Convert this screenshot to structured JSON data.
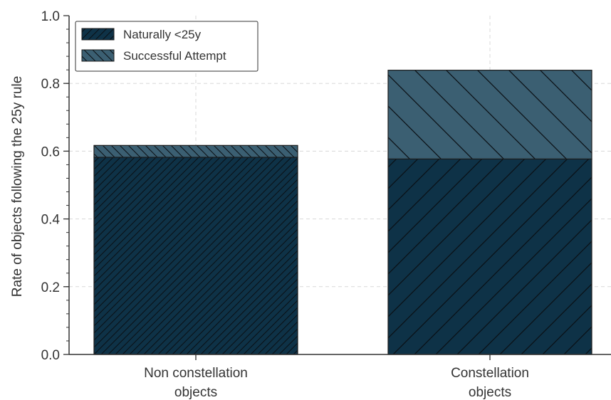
{
  "chart_data": {
    "type": "bar",
    "stacked": true,
    "categories": [
      "Non constellation\nobjects",
      "Constellation\nobjects"
    ],
    "series": [
      {
        "name": "Naturally <25y",
        "values": [
          0.582,
          0.577
        ],
        "color": "#0e3247",
        "hatch": "forward-diagonal"
      },
      {
        "name": "Successful Attempt",
        "values": [
          0.035,
          0.262
        ],
        "color": "#3b5f72",
        "hatch": "back-diagonal"
      }
    ],
    "title": "",
    "xlabel": "",
    "ylabel": "Rate of objects following the 25y rule",
    "ylim": [
      0,
      1.0
    ],
    "yticks": [
      "0.0",
      "0.2",
      "0.4",
      "0.6",
      "0.8",
      "1.0"
    ],
    "grid": true,
    "legend_position": "top-left"
  }
}
